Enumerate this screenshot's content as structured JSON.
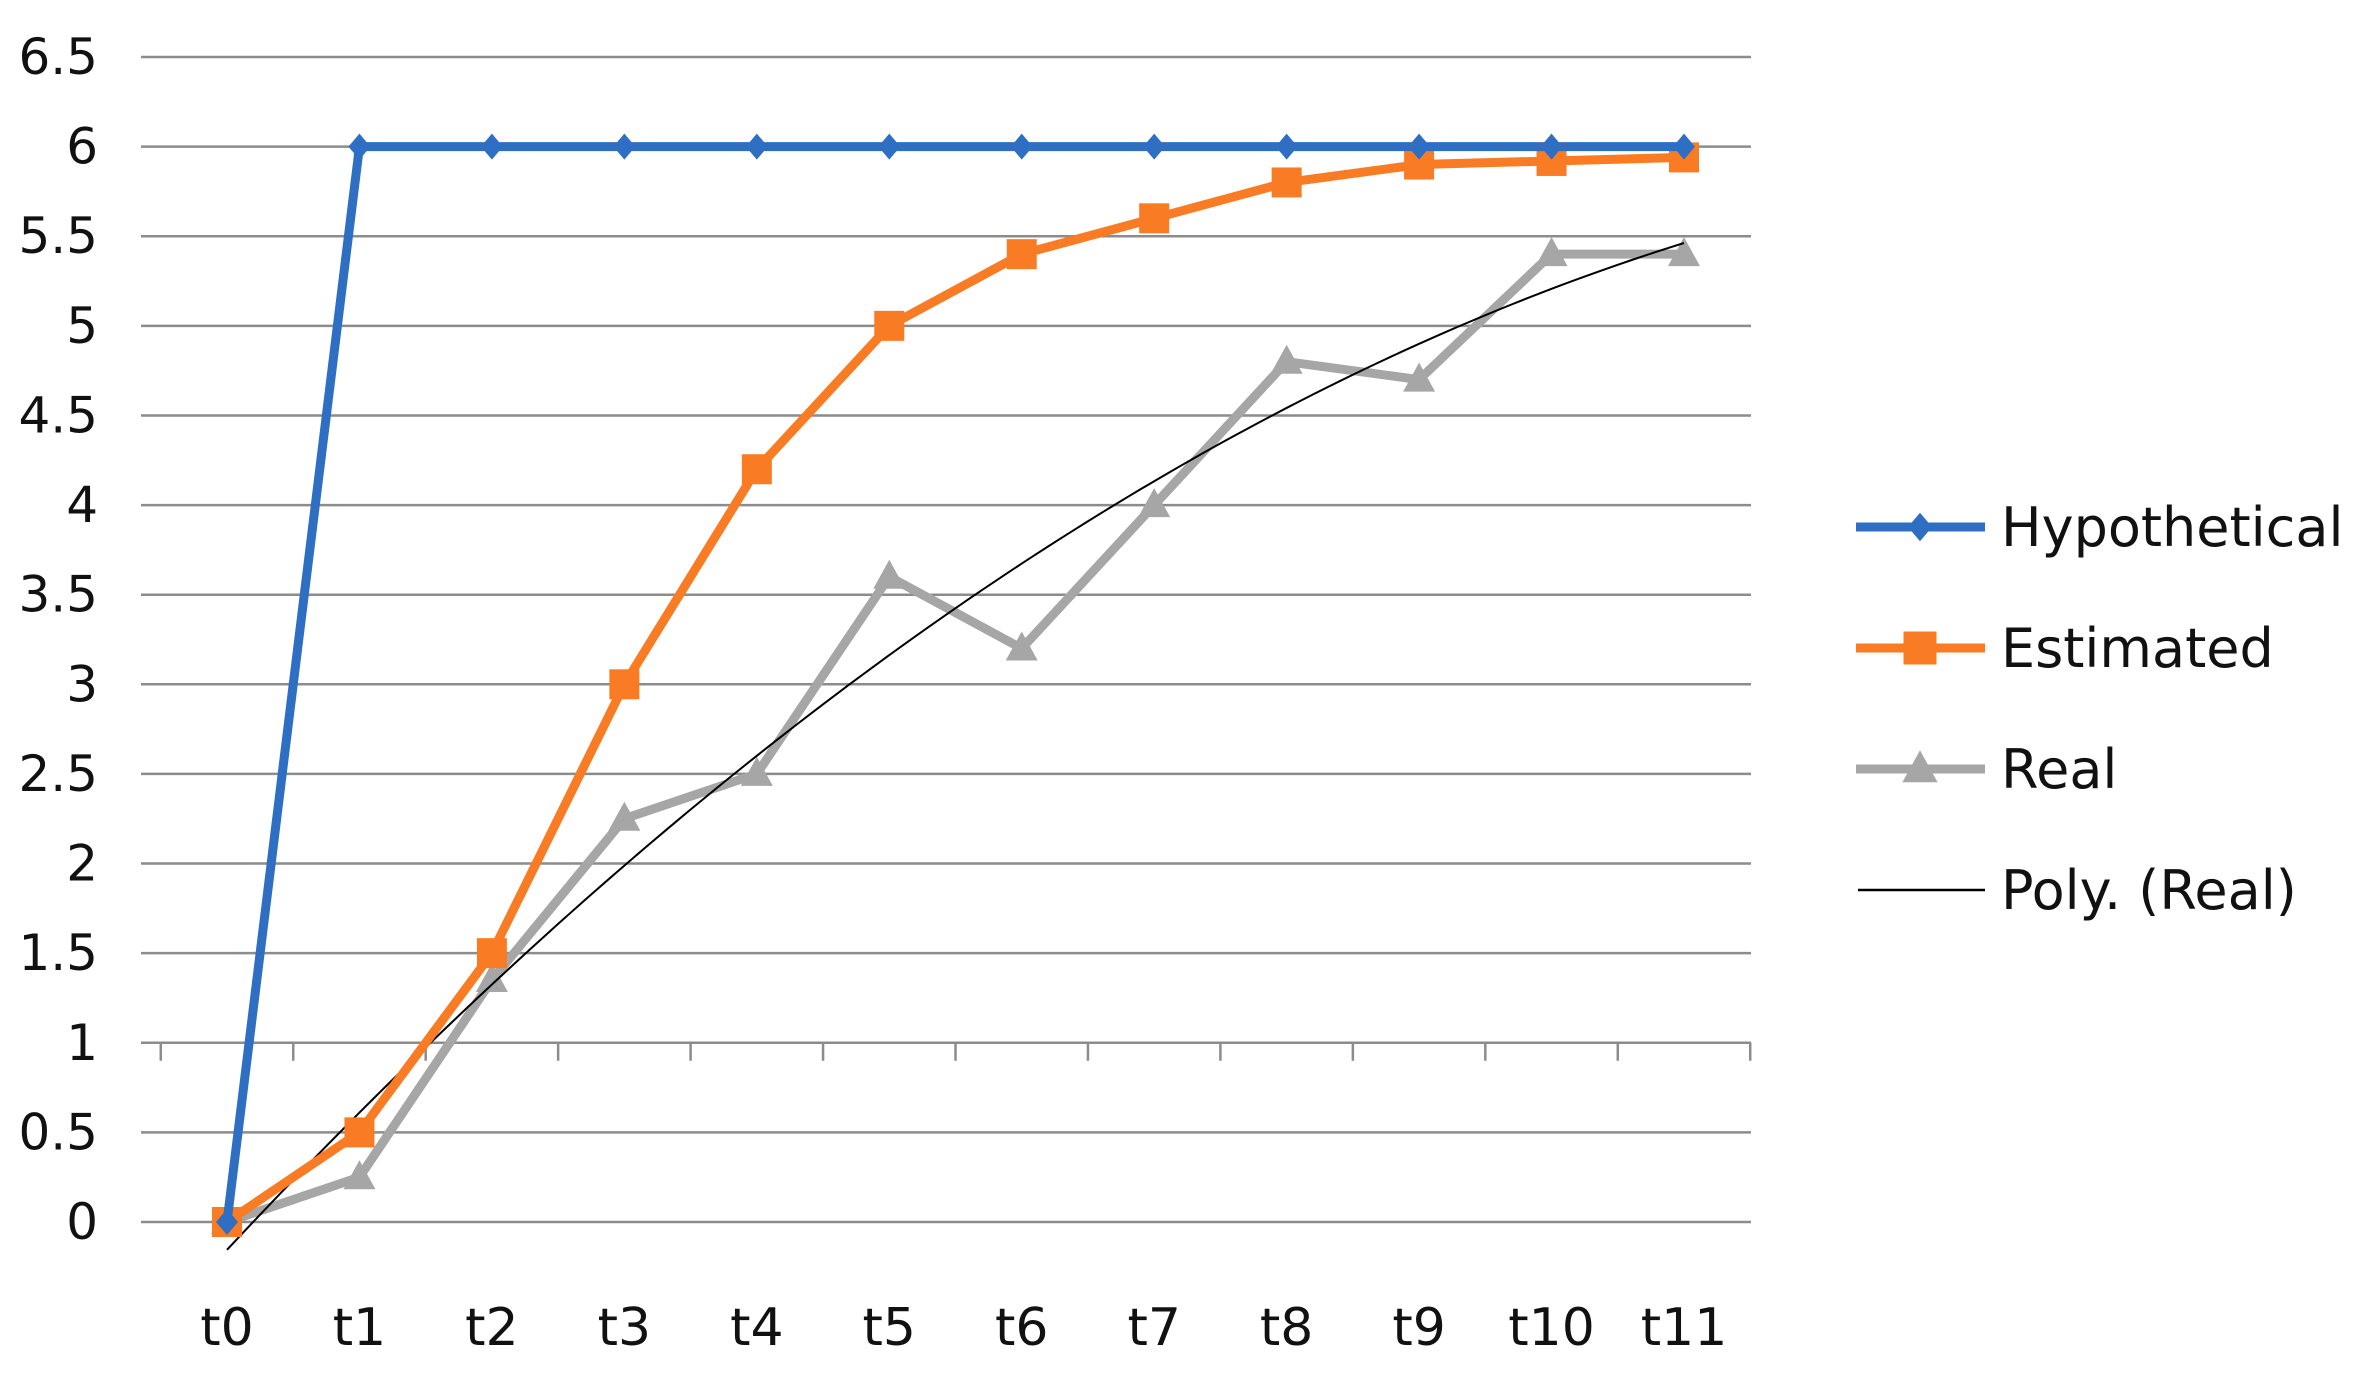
{
  "chart_data": {
    "type": "line",
    "title": "",
    "xlabel": "",
    "ylabel": "",
    "categories": [
      "t0",
      "t1",
      "t2",
      "t3",
      "t4",
      "t5",
      "t6",
      "t7",
      "t8",
      "t9",
      "t10",
      "t11"
    ],
    "ylim": [
      0,
      6.5
    ],
    "yticks": [
      "0",
      "0.5",
      "1",
      "1.5",
      "2",
      "2.5",
      "3",
      "3.5",
      "4",
      "4.5",
      "5",
      "5.5",
      "6",
      "6.5"
    ],
    "grid": true,
    "legend_position": "right",
    "series": [
      {
        "name": "Hypothetical",
        "color": "#2e6fc4",
        "marker": "diamond",
        "values": [
          0,
          6,
          6,
          6,
          6,
          6,
          6,
          6,
          6,
          6,
          6,
          6
        ]
      },
      {
        "name": "Estimated",
        "color": "#f97c24",
        "marker": "square",
        "values": [
          0,
          0.5,
          1.5,
          3,
          4.2,
          5,
          5.4,
          5.6,
          5.8,
          5.9,
          5.92,
          5.94
        ]
      },
      {
        "name": "Real",
        "color": "#a6a6a6",
        "marker": "triangle",
        "values": [
          0,
          0.25,
          1.35,
          2.25,
          2.5,
          3.6,
          3.2,
          4.0,
          4.8,
          4.7,
          5.4,
          5.4
        ]
      }
    ],
    "trendline": {
      "name": "Poly. (Real)",
      "of": "Real",
      "type": "polynomial",
      "order": 2,
      "color": "#000000"
    }
  }
}
